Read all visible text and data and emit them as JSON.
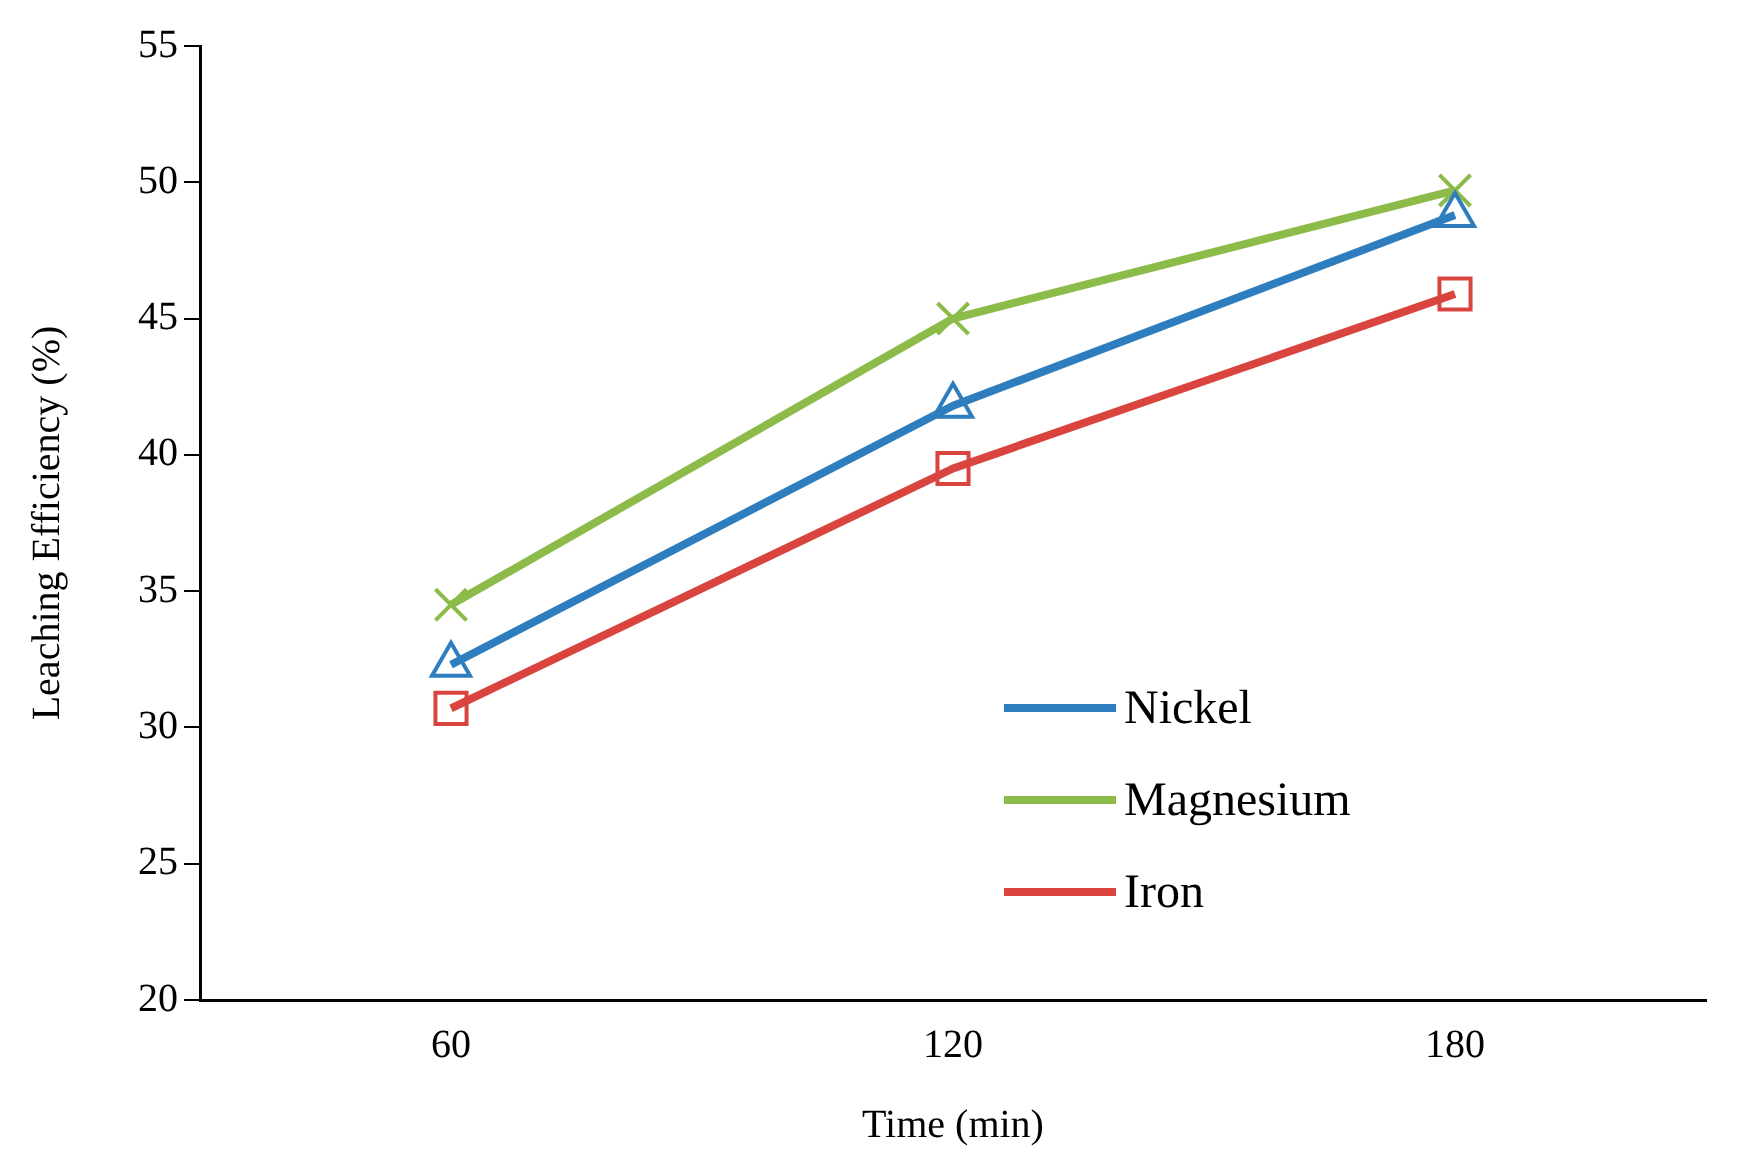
{
  "chart_data": {
    "type": "line",
    "xlabel": "Time (min)",
    "ylabel": "Leaching Efficiency (%)",
    "categories": [
      "60",
      "120",
      "180"
    ],
    "ylim": [
      20,
      55
    ],
    "yticks": [
      20,
      25,
      30,
      35,
      40,
      45,
      50,
      55
    ],
    "grid": false,
    "legend": "bottom",
    "series": [
      {
        "name": "Nickel",
        "color": "#2e7ebf",
        "marker": "triangle",
        "values": [
          32.3,
          41.8,
          48.8
        ]
      },
      {
        "name": "Magnesium",
        "color": "#8cbb4a",
        "marker": "cross",
        "values": [
          34.5,
          45.0,
          49.7
        ]
      },
      {
        "name": "Iron",
        "color": "#d9443f",
        "marker": "square",
        "values": [
          30.7,
          39.5,
          45.9
        ]
      }
    ]
  }
}
